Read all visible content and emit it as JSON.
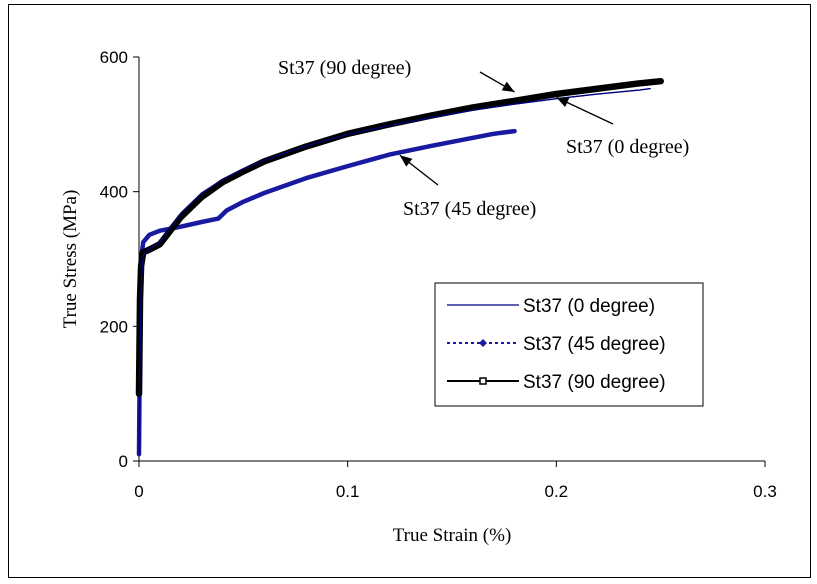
{
  "chart_data": {
    "type": "line",
    "title": "",
    "xlabel": "True Strain (%)",
    "ylabel": "True Stress (MPa)",
    "xlim": [
      0,
      0.3
    ],
    "ylim": [
      0,
      600
    ],
    "xticks": [
      "0",
      "0.1",
      "0.2",
      "0.3"
    ],
    "yticks": [
      "0",
      "200",
      "400",
      "600"
    ],
    "grid": false,
    "legend_position": "right",
    "series": [
      {
        "name": "St37 (0 degree)",
        "color": "#000080",
        "marker": "none",
        "x": [
          0,
          0.0005,
          0.001,
          0.002,
          0.005,
          0.01,
          0.02,
          0.03,
          0.04,
          0.05,
          0.06,
          0.08,
          0.1,
          0.12,
          0.14,
          0.16,
          0.18,
          0.2,
          0.22,
          0.24,
          0.245
        ],
        "y": [
          10,
          150,
          260,
          305,
          315,
          325,
          368,
          398,
          418,
          434,
          447,
          468,
          485,
          498,
          510,
          521,
          530,
          538,
          545,
          551,
          553
        ]
      },
      {
        "name": "St37 (45 degree)",
        "color": "#1a1aa0",
        "marker": "diamond",
        "x": [
          0,
          0.0005,
          0.001,
          0.002,
          0.005,
          0.01,
          0.02,
          0.03,
          0.038,
          0.042,
          0.05,
          0.06,
          0.08,
          0.1,
          0.12,
          0.14,
          0.16,
          0.17,
          0.18
        ],
        "y": [
          10,
          200,
          300,
          325,
          336,
          342,
          348,
          355,
          360,
          372,
          385,
          398,
          420,
          438,
          455,
          468,
          480,
          486,
          490
        ]
      },
      {
        "name": "St37 (90 degree)",
        "color": "#000000",
        "marker": "square",
        "x": [
          0,
          0.0005,
          0.001,
          0.002,
          0.005,
          0.01,
          0.015,
          0.02,
          0.03,
          0.04,
          0.05,
          0.06,
          0.08,
          0.1,
          0.12,
          0.14,
          0.16,
          0.18,
          0.2,
          0.22,
          0.24,
          0.25
        ],
        "y": [
          100,
          240,
          290,
          310,
          314,
          322,
          342,
          362,
          392,
          414,
          430,
          445,
          467,
          486,
          500,
          513,
          525,
          535,
          545,
          553,
          561,
          564
        ]
      }
    ],
    "annotations": [
      {
        "text": "St37 (90 degree)",
        "arrow_to": [
          0.18,
          548
        ]
      },
      {
        "text": "St37 (0 degree)",
        "arrow_to": [
          0.2,
          540
        ]
      },
      {
        "text": "St37 (45 degree)",
        "arrow_to": [
          0.125,
          454
        ]
      }
    ]
  }
}
